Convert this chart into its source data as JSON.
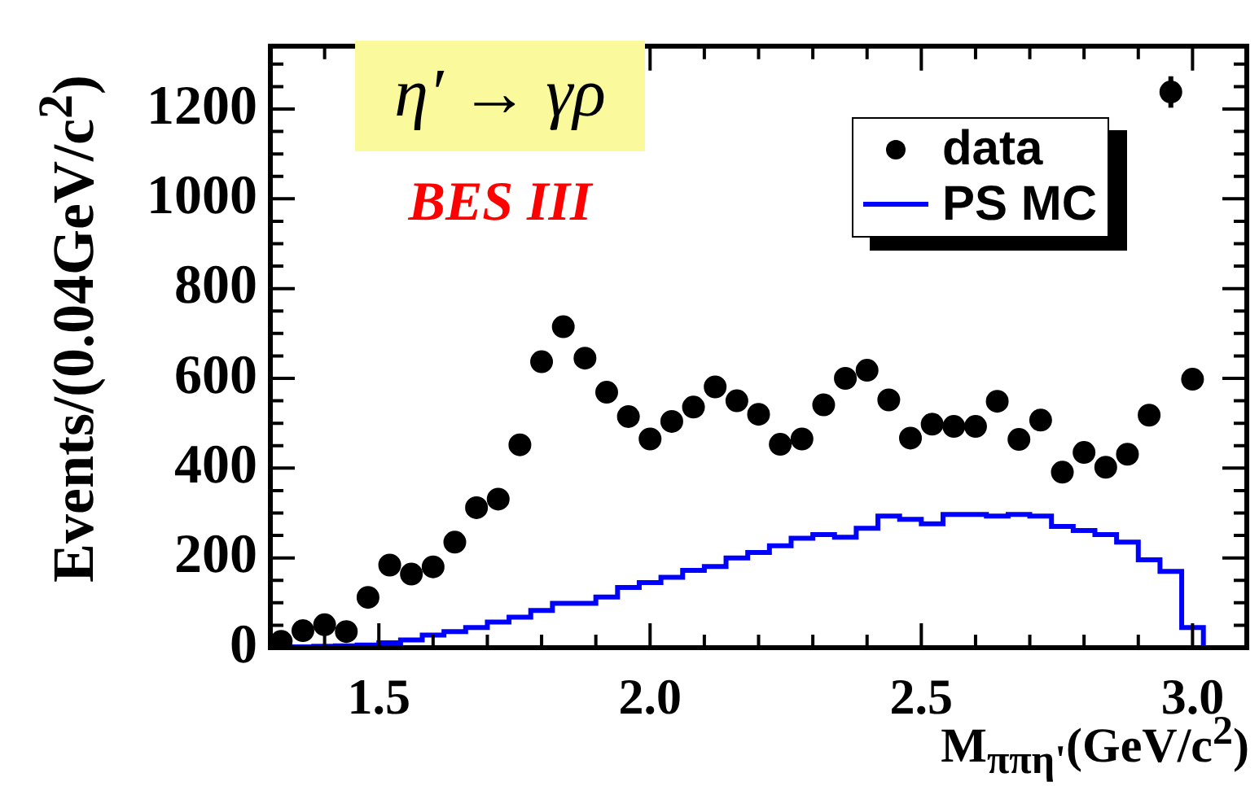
{
  "chart_data": {
    "type": "scatter",
    "xlabel": "M$_{ππη'}$(GeV/c$^{2}$)",
    "ylabel": "Events/(0.04GeV/c$^{2}$)",
    "annotations": [
      "η′ → γρ",
      "BES III"
    ],
    "xlim": [
      1.3,
      3.1
    ],
    "xticks": [
      {
        "value": 1.3,
        "label": null
      },
      {
        "value": 1.4,
        "label": null
      },
      {
        "value": 1.5,
        "label": "1.5"
      },
      {
        "value": 1.6,
        "label": null
      },
      {
        "value": 1.7,
        "label": null
      },
      {
        "value": 1.8,
        "label": null
      },
      {
        "value": 1.9,
        "label": null
      },
      {
        "value": 2.0,
        "label": "2.0"
      },
      {
        "value": 2.1,
        "label": null
      },
      {
        "value": 2.2,
        "label": null
      },
      {
        "value": 2.3,
        "label": null
      },
      {
        "value": 2.4,
        "label": null
      },
      {
        "value": 2.5,
        "label": "2.5"
      },
      {
        "value": 2.6,
        "label": null
      },
      {
        "value": 2.7,
        "label": null
      },
      {
        "value": 2.8,
        "label": null
      },
      {
        "value": 2.9,
        "label": null
      },
      {
        "value": 3.0,
        "label": "3.0"
      }
    ],
    "ylim": [
      0,
      1340
    ],
    "yticks": [
      0,
      {
        "value": 50,
        "label": null
      },
      {
        "value": 100,
        "label": null
      },
      {
        "value": 150,
        "label": null
      },
      200,
      {
        "value": 250,
        "label": null
      },
      {
        "value": 300,
        "label": null
      },
      {
        "value": 350,
        "label": null
      },
      400,
      {
        "value": 450,
        "label": null
      },
      {
        "value": 500,
        "label": null
      },
      {
        "value": 550,
        "label": null
      },
      600,
      {
        "value": 650,
        "label": null
      },
      {
        "value": 700,
        "label": null
      },
      {
        "value": 750,
        "label": null
      },
      800,
      {
        "value": 850,
        "label": null
      },
      {
        "value": 900,
        "label": null
      },
      {
        "value": 950,
        "label": null
      },
      1000,
      {
        "value": 1050,
        "label": null
      },
      {
        "value": 1100,
        "label": null
      },
      {
        "value": 1150,
        "label": null
      },
      1200,
      {
        "value": 1250,
        "label": null
      },
      {
        "value": 1300,
        "label": null
      }
    ],
    "legend": "top right",
    "series": [
      {
        "name": "data",
        "type": "scatter",
        "marker": "circle",
        "color": "#000000",
        "x": [
          1.32,
          1.36,
          1.4,
          1.44,
          1.48,
          1.52,
          1.56,
          1.6,
          1.64,
          1.68,
          1.72,
          1.76,
          1.8,
          1.84,
          1.88,
          1.92,
          1.96,
          2.0,
          2.04,
          2.08,
          2.12,
          2.16,
          2.2,
          2.24,
          2.28,
          2.32,
          2.36,
          2.4,
          2.44,
          2.48,
          2.52,
          2.56,
          2.6,
          2.64,
          2.68,
          2.72,
          2.76,
          2.8,
          2.84,
          2.88,
          2.92,
          2.96,
          3.0
        ],
        "values": [
          14,
          38,
          51,
          36,
          112,
          184,
          164,
          180,
          235,
          312,
          331,
          452,
          637,
          715,
          645,
          569,
          515,
          465,
          504,
          536,
          581,
          550,
          520,
          453,
          465,
          541,
          600,
          618,
          552,
          467,
          498,
          493,
          493,
          549,
          464,
          507,
          391,
          435,
          402,
          431,
          518,
          1238,
          598
        ],
        "errors": [
          null,
          null,
          null,
          null,
          null,
          null,
          null,
          null,
          null,
          null,
          null,
          null,
          null,
          null,
          null,
          null,
          null,
          null,
          null,
          null,
          null,
          null,
          null,
          null,
          null,
          null,
          null,
          null,
          null,
          null,
          null,
          null,
          null,
          null,
          null,
          null,
          null,
          null,
          null,
          null,
          null,
          35,
          null
        ]
      },
      {
        "name": "PS MC",
        "type": "histogram",
        "color": "#0000ff",
        "bins": [
          1.3,
          1.34,
          1.38,
          1.42,
          1.46,
          1.5,
          1.54,
          1.58,
          1.62,
          1.66,
          1.7,
          1.74,
          1.78,
          1.82,
          1.86,
          1.9,
          1.94,
          1.98,
          2.02,
          2.06,
          2.1,
          2.14,
          2.18,
          2.22,
          2.26,
          2.3,
          2.34,
          2.38,
          2.42,
          2.46,
          2.5,
          2.54,
          2.58,
          2.62,
          2.66,
          2.7,
          2.74,
          2.78,
          2.82,
          2.86,
          2.9,
          2.94,
          2.98,
          3.02,
          3.06,
          3.1
        ],
        "values": [
          1,
          2,
          3,
          4,
          6,
          11,
          17,
          28,
          36,
          45,
          57,
          68,
          83,
          99,
          99,
          113,
          134,
          145,
          157,
          172,
          181,
          200,
          212,
          227,
          244,
          252,
          246,
          266,
          293,
          286,
          276,
          297,
          297,
          293,
          297,
          293,
          270,
          261,
          252,
          235,
          196,
          170,
          45,
          0,
          0
        ]
      }
    ]
  }
}
